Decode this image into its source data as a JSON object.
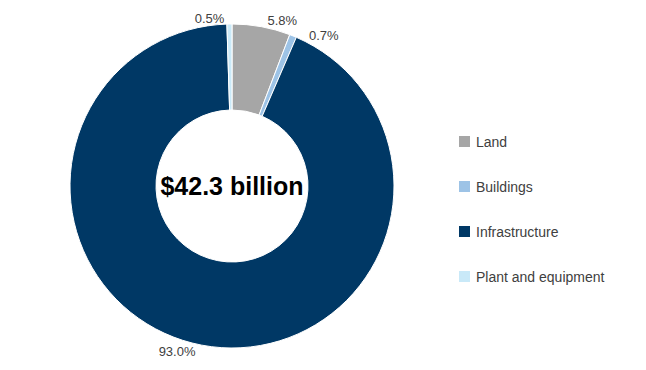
{
  "chart_data": {
    "type": "pie",
    "annotation": "$42.3 billion",
    "categories": [
      "Land",
      "Buildings",
      "Infrastructure",
      "Plant and equipment"
    ],
    "values": [
      5.8,
      0.7,
      93.0,
      0.5
    ],
    "value_labels": [
      "5.8%",
      "0.7%",
      "93.0%",
      "0.5%"
    ],
    "colors": [
      "#a6a6a6",
      "#9dc3e6",
      "#003865",
      "#c9e9f8"
    ],
    "legend": "right",
    "data_labels": true
  }
}
